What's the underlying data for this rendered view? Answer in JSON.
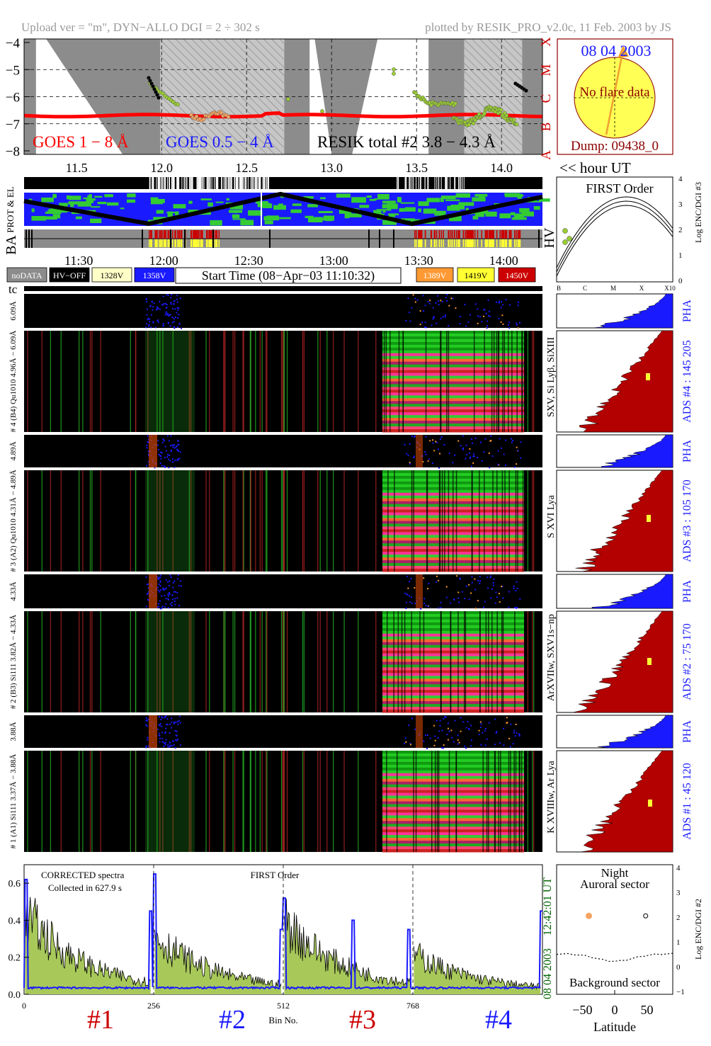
{
  "header": {
    "left": "Upload ver = \"m\", DYN−ALLO DGI =   2 ÷ 302 s",
    "right": "plotted by RESIK_PRO_v2.0c, 11 Feb. 2003 by JS"
  },
  "goes_panel": {
    "ylim": [
      -8,
      -4
    ],
    "yticks": [
      "−4",
      "−5",
      "−6",
      "−7",
      "−8"
    ],
    "class_letters": [
      "X",
      "M",
      "C",
      "B",
      "A"
    ],
    "legend": {
      "goes_long": "GOES 1 − 8 Å",
      "goes_short": "GOES 0.5 − 4 Å",
      "resik": "RESIK total #2  3.8 − 4.3 Å"
    },
    "colors": {
      "goes_long": "#ff0000",
      "goes_short": "#1a1aff",
      "resik": "#000000",
      "shade": "#8c8c8c",
      "hatch": "#bdbdbd",
      "points_green": "#9acd32",
      "points_orange": "#f4a460"
    },
    "goes_long_level": -6.7
  },
  "sun_box": {
    "date": "08 04 2003",
    "status": "No flare data",
    "dump": "Dump: 09438_0"
  },
  "hour_axis": {
    "label": "<< hour UT",
    "ticks": [
      "11.5",
      "12.0",
      "12.5",
      "13.0",
      "13.5",
      "14.0"
    ],
    "range": [
      11.17,
      14.22
    ]
  },
  "rows": {
    "prot_label": "PROT & EL",
    "ba_label": "BA",
    "hv_label": "HV"
  },
  "time_axis": {
    "ticks": [
      "11:30",
      "12:00",
      "12:30",
      "13:00",
      "13:30",
      "14:00"
    ]
  },
  "voltage_legend": {
    "items": [
      {
        "label": "noDATA",
        "bg": "#8c8c8c",
        "fg": "#ffffff"
      },
      {
        "label": "HV−OFF",
        "bg": "#000000",
        "fg": "#ffffff"
      },
      {
        "label": "1328V",
        "bg": "#ffffc8",
        "fg": "#000000"
      },
      {
        "label": "1358V",
        "bg": "#1a1aff",
        "fg": "#ffffff"
      }
    ],
    "start_time": "Start Time (08−Apr−03 11:10:32)",
    "items_right": [
      {
        "label": "1389V",
        "bg": "#ff9933",
        "fg": "#ffffff"
      },
      {
        "label": "1419V",
        "bg": "#ffff33",
        "fg": "#000000"
      },
      {
        "label": "1450V",
        "bg": "#cc0000",
        "fg": "#ffffff"
      }
    ]
  },
  "first_order_panel": {
    "title": "FIRST Order",
    "ylabel": "Log ENC/DGI #3",
    "yticks": [
      "4",
      "3",
      "2",
      "1",
      "0"
    ],
    "xticks": [
      "B",
      "C",
      "M",
      "X",
      "X10"
    ]
  },
  "tc_label": "tc",
  "channels": [
    {
      "pha_label": "6.09Å",
      "label": "# 4 (B4) Qu1010 4.96Å − 6.09Å",
      "lines": "SXV, Si Lyβ, SiXIII",
      "ads": "ADS #4 :  145 205",
      "pha_text": "PHA"
    },
    {
      "pha_label": "4.89Å",
      "label": "# 3 (A2) Qu1010 4.31Å − 4.89Å",
      "lines": "S XVI Lya",
      "ads": "ADS #3 :  105 170",
      "pha_text": "PHA"
    },
    {
      "pha_label": "4.33Å",
      "label": "# 2 (B3) Si111 3.82Å − 4.33Å",
      "lines": "ArXVIIw, SXV1s−np",
      "ads": "ADS #2 :   75 170",
      "pha_text": "PHA"
    },
    {
      "pha_label": "3.88Å",
      "label": "# 1 (A1) Si111 3.37Å − 3.88Å",
      "lines": "K XVIIIw, Ar Lya",
      "ads": "ADS #1 :   45 120",
      "pha_text": "PHA"
    }
  ],
  "spectra_panel": {
    "title_left": "CORRECTED spectra",
    "collected": "Collected in   627.9 s",
    "title_center": "FIRST Order",
    "yticks": [
      "0.6",
      "0.4",
      "0.2",
      "0.0"
    ],
    "xticks": [
      "0",
      "256",
      "512",
      "768"
    ],
    "xlabel": "Bin No.",
    "time_stamp": "12:42:01 UT",
    "date_stamp": "08 04 2003",
    "channel_labels": [
      "#1",
      "#2",
      "#3",
      "#4"
    ],
    "channel_colors": [
      "#cc0000",
      "#1a1aff",
      "#cc0000",
      "#1a1aff"
    ],
    "fill_color": "#a8c95a",
    "line_color": "#000000",
    "blue_color": "#1a1aff"
  },
  "latitude_panel": {
    "title1": "Night",
    "title2": "Auroral sector",
    "bottom": "Background sector",
    "xlabel": "Latitude",
    "xticks": [
      "−50",
      "0",
      "50"
    ],
    "yticks": [
      "4",
      "3",
      "2",
      "1",
      "0",
      "−1"
    ],
    "ylabel": "Log ENC/DGI #2",
    "points": [
      {
        "lat": -40,
        "log": 2.05,
        "filled": true
      },
      {
        "lat": 48,
        "log": 2.05,
        "filled": false
      }
    ]
  }
}
